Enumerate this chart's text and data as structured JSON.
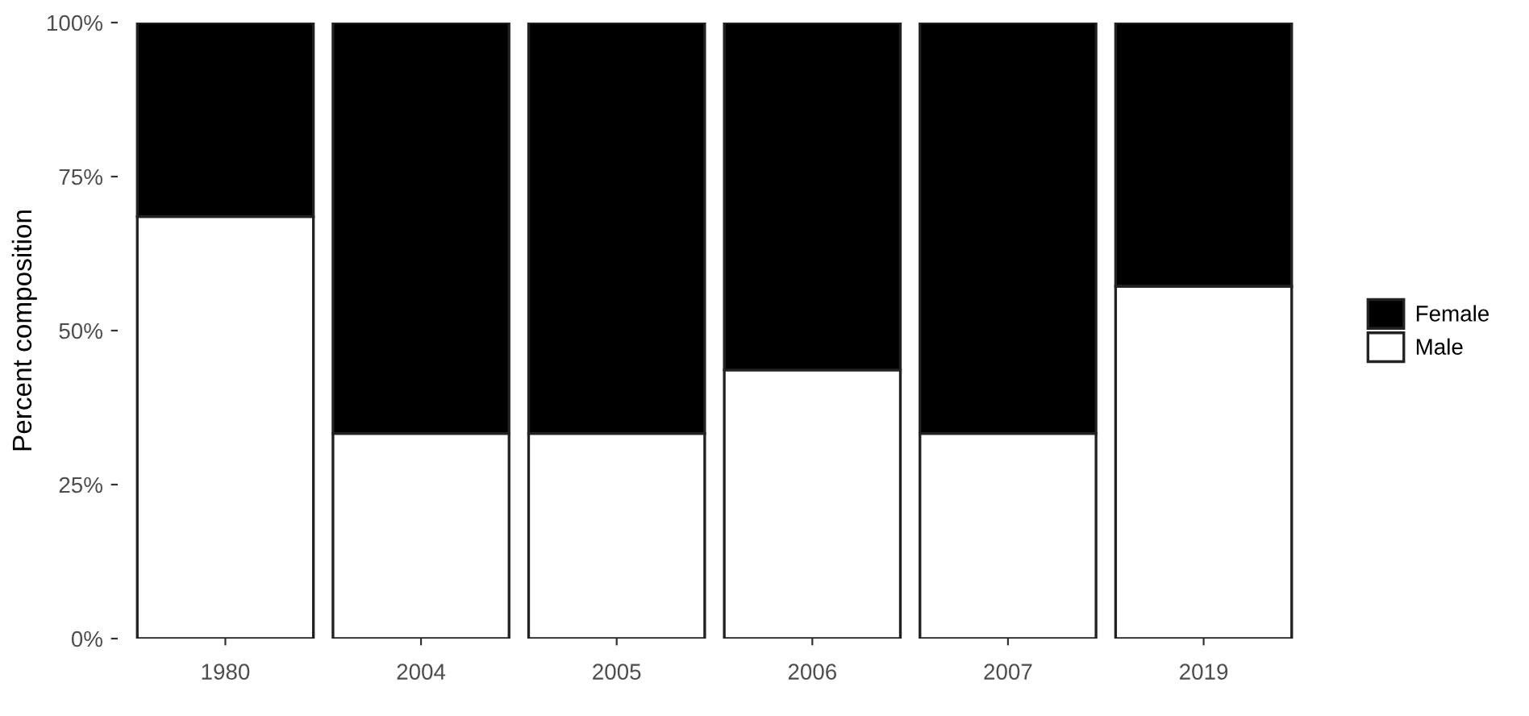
{
  "chart_data": {
    "type": "bar",
    "stacked": true,
    "ylabel": "Percent composition",
    "categories": [
      "1980",
      "2004",
      "2005",
      "2006",
      "2007",
      "2019"
    ],
    "series": [
      {
        "name": "Male",
        "color": "#ffffff",
        "values": [
          68.5,
          33.3,
          33.3,
          43.6,
          33.3,
          57.2
        ]
      },
      {
        "name": "Female",
        "color": "#000000",
        "values": [
          31.5,
          66.7,
          66.7,
          56.4,
          66.7,
          42.8
        ]
      }
    ],
    "ylim": [
      0,
      100
    ],
    "yticks": [
      {
        "value": 0,
        "label": "0%"
      },
      {
        "value": 25,
        "label": "25%"
      },
      {
        "value": 50,
        "label": "50%"
      },
      {
        "value": 75,
        "label": "75%"
      },
      {
        "value": 100,
        "label": "100%"
      }
    ],
    "grid": false,
    "legend": "right"
  }
}
